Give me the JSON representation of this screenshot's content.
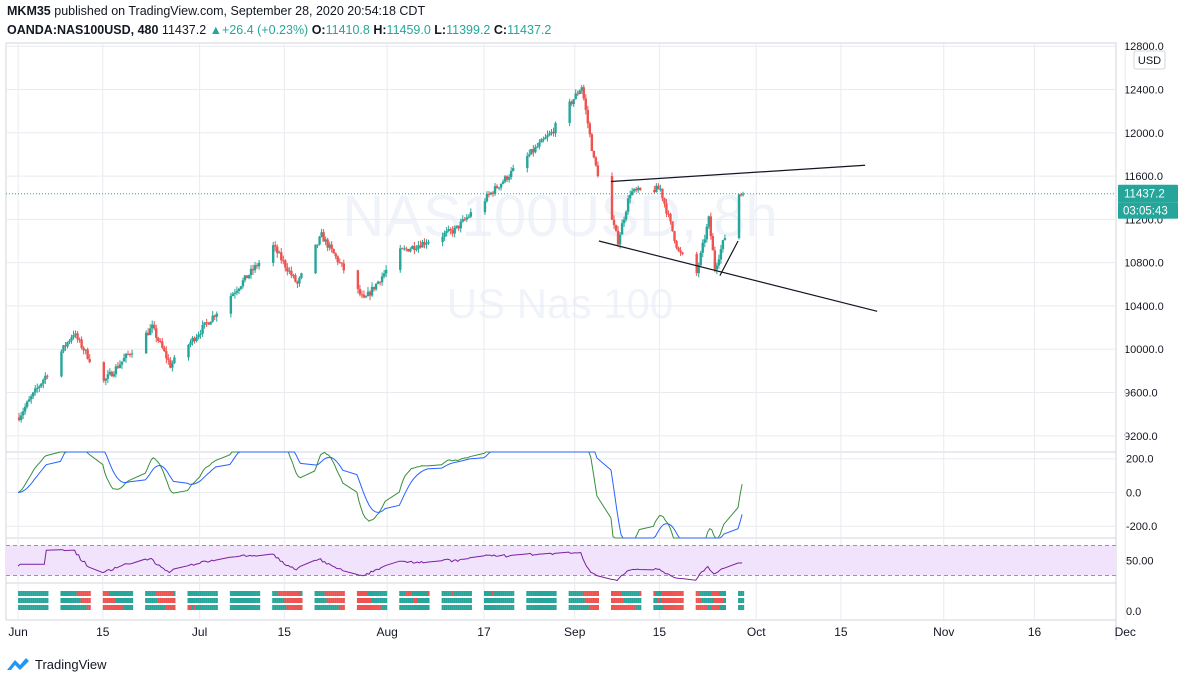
{
  "header": {
    "publisher_user": "MKM35",
    "publisher_rest": " published on TradingView.com, September 28, 2020 20:54:18 CDT",
    "symbol": "OANDA:NAS100USD, 480",
    "last": "11437.2",
    "change_arrow": "▲",
    "change": "+26.4 (+0.23%)",
    "o_label": "O:",
    "o_val": "11410.8",
    "h_label": "H:",
    "h_val": "11459.0",
    "l_label": "L:",
    "l_val": "11399.2",
    "c_label": "C:",
    "c_val": "11437.2"
  },
  "watermark": {
    "title": "NAS100USD, 8h",
    "subtitle": "US Nas 100"
  },
  "currency_label": "USD",
  "price_tag": {
    "value": "11437.2",
    "countdown": "03:05:43"
  },
  "brand": "TradingView",
  "colors": {
    "up": "#26a69a",
    "down": "#ef5350",
    "grid": "#e9ebf0",
    "axis_text": "#131722",
    "macd": "#2962ff",
    "signal": "#388e3c",
    "rsi": "#7b1fa2",
    "rsi_band": "#f1e3fb",
    "trendline": "#131722",
    "price_line": "#26a69a"
  },
  "chart_data": {
    "type": "candlestick",
    "symbol": "OANDA:NAS100USD",
    "timeframe": "480",
    "price_axis": {
      "ticks": [
        12800.0,
        12400.0,
        12000.0,
        11600.0,
        11200.0,
        10800.0,
        10400.0,
        10000.0,
        9600.0,
        9200.0
      ],
      "labels": [
        "12800.0",
        "12400.0",
        "12000.0",
        "11600.0",
        "11200.0",
        "10800.0",
        "10400.0",
        "10000.0",
        "9600.0",
        "9200.0"
      ],
      "range": [
        9050,
        12830
      ]
    },
    "time_axis": {
      "labels": [
        "Jun",
        "15",
        "Jul",
        "15",
        "Aug",
        "17",
        "Sep",
        "15",
        "Oct",
        "15",
        "Nov",
        "16",
        "Dec"
      ]
    },
    "key_points": [
      {
        "date": "2020-06-01",
        "close": 9380
      },
      {
        "date": "2020-06-10",
        "close": 10150
      },
      {
        "date": "2020-06-15",
        "close": 9700
      },
      {
        "date": "2020-06-23",
        "close": 10200
      },
      {
        "date": "2020-06-26",
        "close": 9850
      },
      {
        "date": "2020-07-13",
        "close": 10950
      },
      {
        "date": "2020-07-17",
        "close": 10600
      },
      {
        "date": "2020-07-21",
        "close": 11050
      },
      {
        "date": "2020-07-28",
        "close": 10450
      },
      {
        "date": "2020-08-03",
        "close": 10900
      },
      {
        "date": "2020-08-12",
        "close": 11100
      },
      {
        "date": "2020-08-19",
        "close": 11500
      },
      {
        "date": "2020-08-28",
        "close": 12000
      },
      {
        "date": "2020-09-02",
        "close": 12430
      },
      {
        "date": "2020-09-04",
        "close": 11750
      },
      {
        "date": "2020-09-08",
        "close": 11000
      },
      {
        "date": "2020-09-10",
        "close": 11450
      },
      {
        "date": "2020-09-15",
        "close": 11480
      },
      {
        "date": "2020-09-18",
        "close": 10900
      },
      {
        "date": "2020-09-21",
        "close": 10700
      },
      {
        "date": "2020-09-23",
        "close": 11200
      },
      {
        "date": "2020-09-24",
        "close": 10750
      },
      {
        "date": "2020-09-28",
        "close": 11437.2
      }
    ],
    "trendlines": [
      {
        "from": {
          "date": "2020-09-07",
          "price": 11550
        },
        "to": {
          "date": "2020-10-19",
          "price": 11700
        }
      },
      {
        "from": {
          "date": "2020-09-05",
          "price": 11000
        },
        "to": {
          "date": "2020-10-21",
          "price": 10350
        }
      },
      {
        "from": {
          "date": "2020-09-25",
          "price": 10680
        },
        "to": {
          "date": "2020-09-28",
          "price": 11000
        }
      }
    ],
    "macd_panel": {
      "ticks": [
        200.0,
        0.0,
        -200.0
      ],
      "labels": [
        "200.0",
        "0.0",
        "-200.0"
      ],
      "range": [
        -270,
        240
      ]
    },
    "rsi_panel": {
      "ticks": [
        50.0
      ],
      "labels": [
        "50.00"
      ],
      "band": [
        30,
        70
      ],
      "range": [
        20,
        80
      ]
    },
    "trend_strip_panel": {
      "ticks": [
        0.0
      ],
      "labels": [
        "0.0"
      ]
    }
  }
}
